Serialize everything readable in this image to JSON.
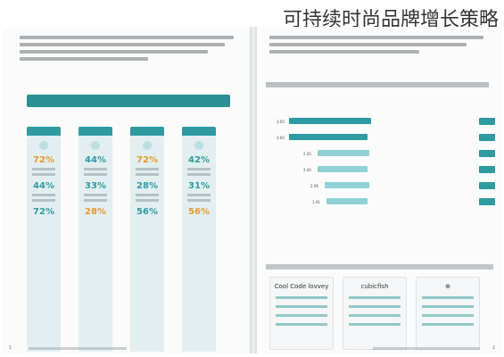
{
  "title": "可持续时尚品牌增长策略",
  "left_page": {
    "banner": "",
    "columns": [
      {
        "percentages": [
          "72%",
          "44%",
          "72%"
        ]
      },
      {
        "percentages": [
          "44%",
          "33%",
          "28%"
        ]
      },
      {
        "percentages": [
          "72%",
          "28%",
          "56%"
        ]
      },
      {
        "percentages": [
          "42%",
          "31%",
          "56%"
        ]
      }
    ]
  },
  "right_page": {
    "bars": [
      {
        "value": "3.65"
      },
      {
        "value": "3.60"
      },
      {
        "value": "2.45"
      },
      {
        "value": "2.40"
      },
      {
        "value": "2.06"
      },
      {
        "value": "1.91"
      }
    ],
    "brands": [
      "cubicfish",
      "Cool Code lovvey"
    ]
  }
}
